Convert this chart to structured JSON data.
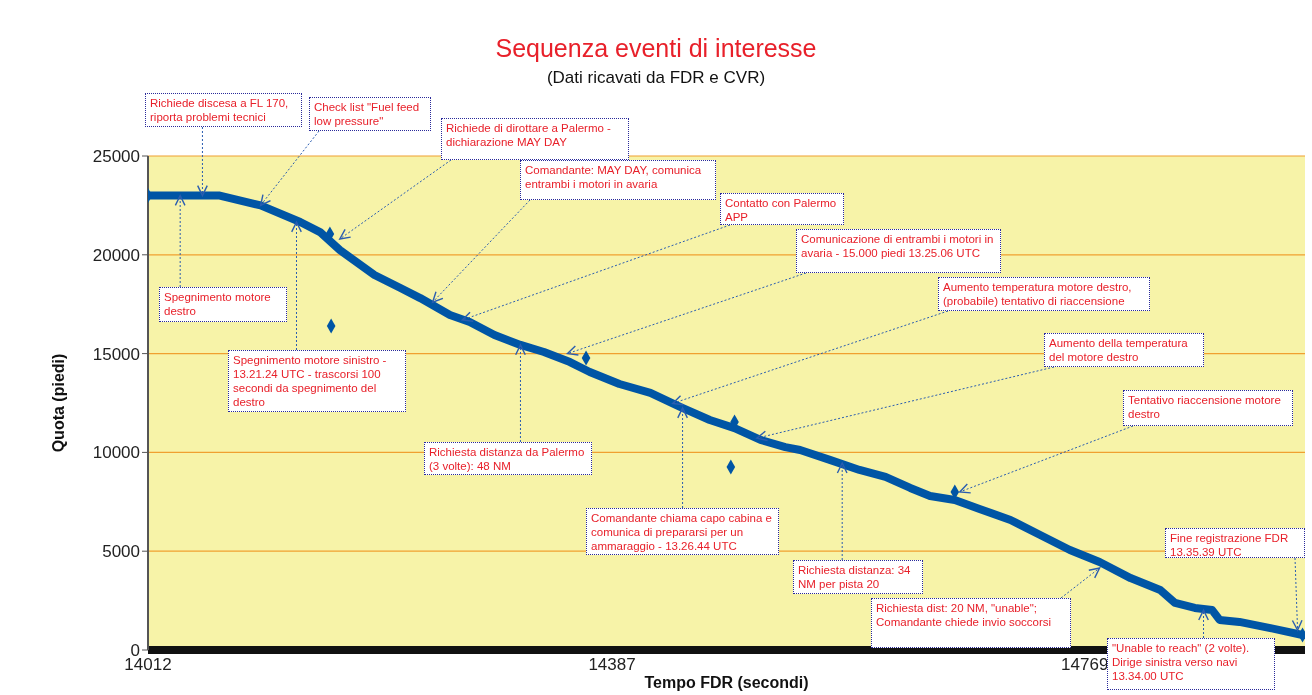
{
  "chart_data": {
    "type": "line",
    "title": "Sequenza eventi di interesse",
    "subtitle": "(Dati ricavati da FDR e CVR)",
    "xlabel": "Tempo FDR (secondi)",
    "ylabel": "Quota (piedi)",
    "xlim": [
      14012,
      14947
    ],
    "xticks": [
      14012,
      14387,
      14769
    ],
    "ylim": [
      0,
      25000
    ],
    "yticks": [
      0,
      5000,
      10000,
      15000,
      20000,
      25000
    ],
    "grid": "y",
    "line_style": "solid",
    "series": [
      {
        "type": "line",
        "color": "#0055a5",
        "x": [
          14012,
          14070,
          14103,
          14135,
          14151,
          14167,
          14195,
          14216,
          14232,
          14256,
          14272,
          14292,
          14313,
          14332,
          14353,
          14369,
          14393,
          14418,
          14442,
          14466,
          14486,
          14507,
          14527,
          14539,
          14563,
          14587,
          14608,
          14628,
          14644,
          14664,
          14684,
          14709,
          14733,
          14757,
          14781,
          14806,
          14830,
          14842,
          14858,
          14872,
          14878,
          14894,
          14919,
          14945
        ],
        "values": [
          23000,
          23000,
          22500,
          21660,
          21150,
          20240,
          18980,
          18320,
          17810,
          16950,
          16600,
          15940,
          15440,
          15080,
          14570,
          14070,
          13460,
          13010,
          12300,
          11640,
          11230,
          10630,
          10270,
          10120,
          9620,
          9110,
          8760,
          8200,
          7790,
          7590,
          7140,
          6580,
          5820,
          5060,
          4450,
          3640,
          3040,
          2380,
          2130,
          2020,
          1520,
          1420,
          1110,
          760
        ]
      },
      {
        "type": "scatter",
        "color": "#0055a5",
        "marker": "diamond",
        "x": [
          14012,
          14159,
          14160,
          14366,
          14486,
          14483,
          14664,
          14945
        ],
        "values": [
          23000,
          21050,
          16400,
          14780,
          11540,
          9260,
          8000,
          760
        ]
      }
    ],
    "annotations": [
      {
        "text": "Richiede discesa a FL 170, riporta problemi tecnici",
        "x": 14056,
        "y": 23000
      },
      {
        "text": "Check list \"Fuel feed low pressure\"",
        "x": 14103,
        "y": 22500
      },
      {
        "text": "Richiede di dirottare a Palermo - dichiarazione MAY DAY",
        "x": 14167,
        "y": 20800
      },
      {
        "text": "Comandante: MAY DAY, comunica entrambi i motori in avaria",
        "x": 14242,
        "y": 17600
      },
      {
        "text": "Contatto con Palermo APP",
        "x": 14266,
        "y": 16700
      },
      {
        "text": "Comunicazione di entrambi i motori in avaria - 15.000 piedi 13.25.06 UTC",
        "x": 14351,
        "y": 15000
      },
      {
        "text": "Aumento temperatura motore destro, (probabile) tentativo di riaccensione",
        "x": 14436,
        "y": 12480
      },
      {
        "text": "Aumento della temperatura del motore destro",
        "x": 14504,
        "y": 10720
      },
      {
        "text": "Tentativo riaccensione motore destro",
        "x": 14668,
        "y": 8000
      },
      {
        "text": "Spegnimento motore destro",
        "x": 14038,
        "y": 23000
      },
      {
        "text": "Spegnimento motore sinistro - 13.21.24 UTC - trascorsi 100 secondi da spegnimento del destro",
        "x": 14132,
        "y": 21660
      },
      {
        "text": "Richiesta distanza da Palermo (3 volte): 48 NM",
        "x": 14313,
        "y": 15440
      },
      {
        "text": "Comandante chiama capo cabina e comunica di prepararsi per un ammaraggio - 13.26.44 UTC",
        "x": 14444,
        "y": 12250
      },
      {
        "text": "Richiesta distanza: 34 NM per pista 20",
        "x": 14573,
        "y": 9460
      },
      {
        "text": "Richiesta dist: 20 NM, \"unable\"; Comandante chiede invio soccorsi",
        "x": 14781,
        "y": 4150
      },
      {
        "text": "\"Unable to reach\" (2 volte). Dirige sinistra verso navi 13.34.00 UTC",
        "x": 14865,
        "y": 2020
      },
      {
        "text": "Fine registrazione FDR 13.35.39 UTC",
        "x": 14941,
        "y": 1000
      }
    ]
  }
}
